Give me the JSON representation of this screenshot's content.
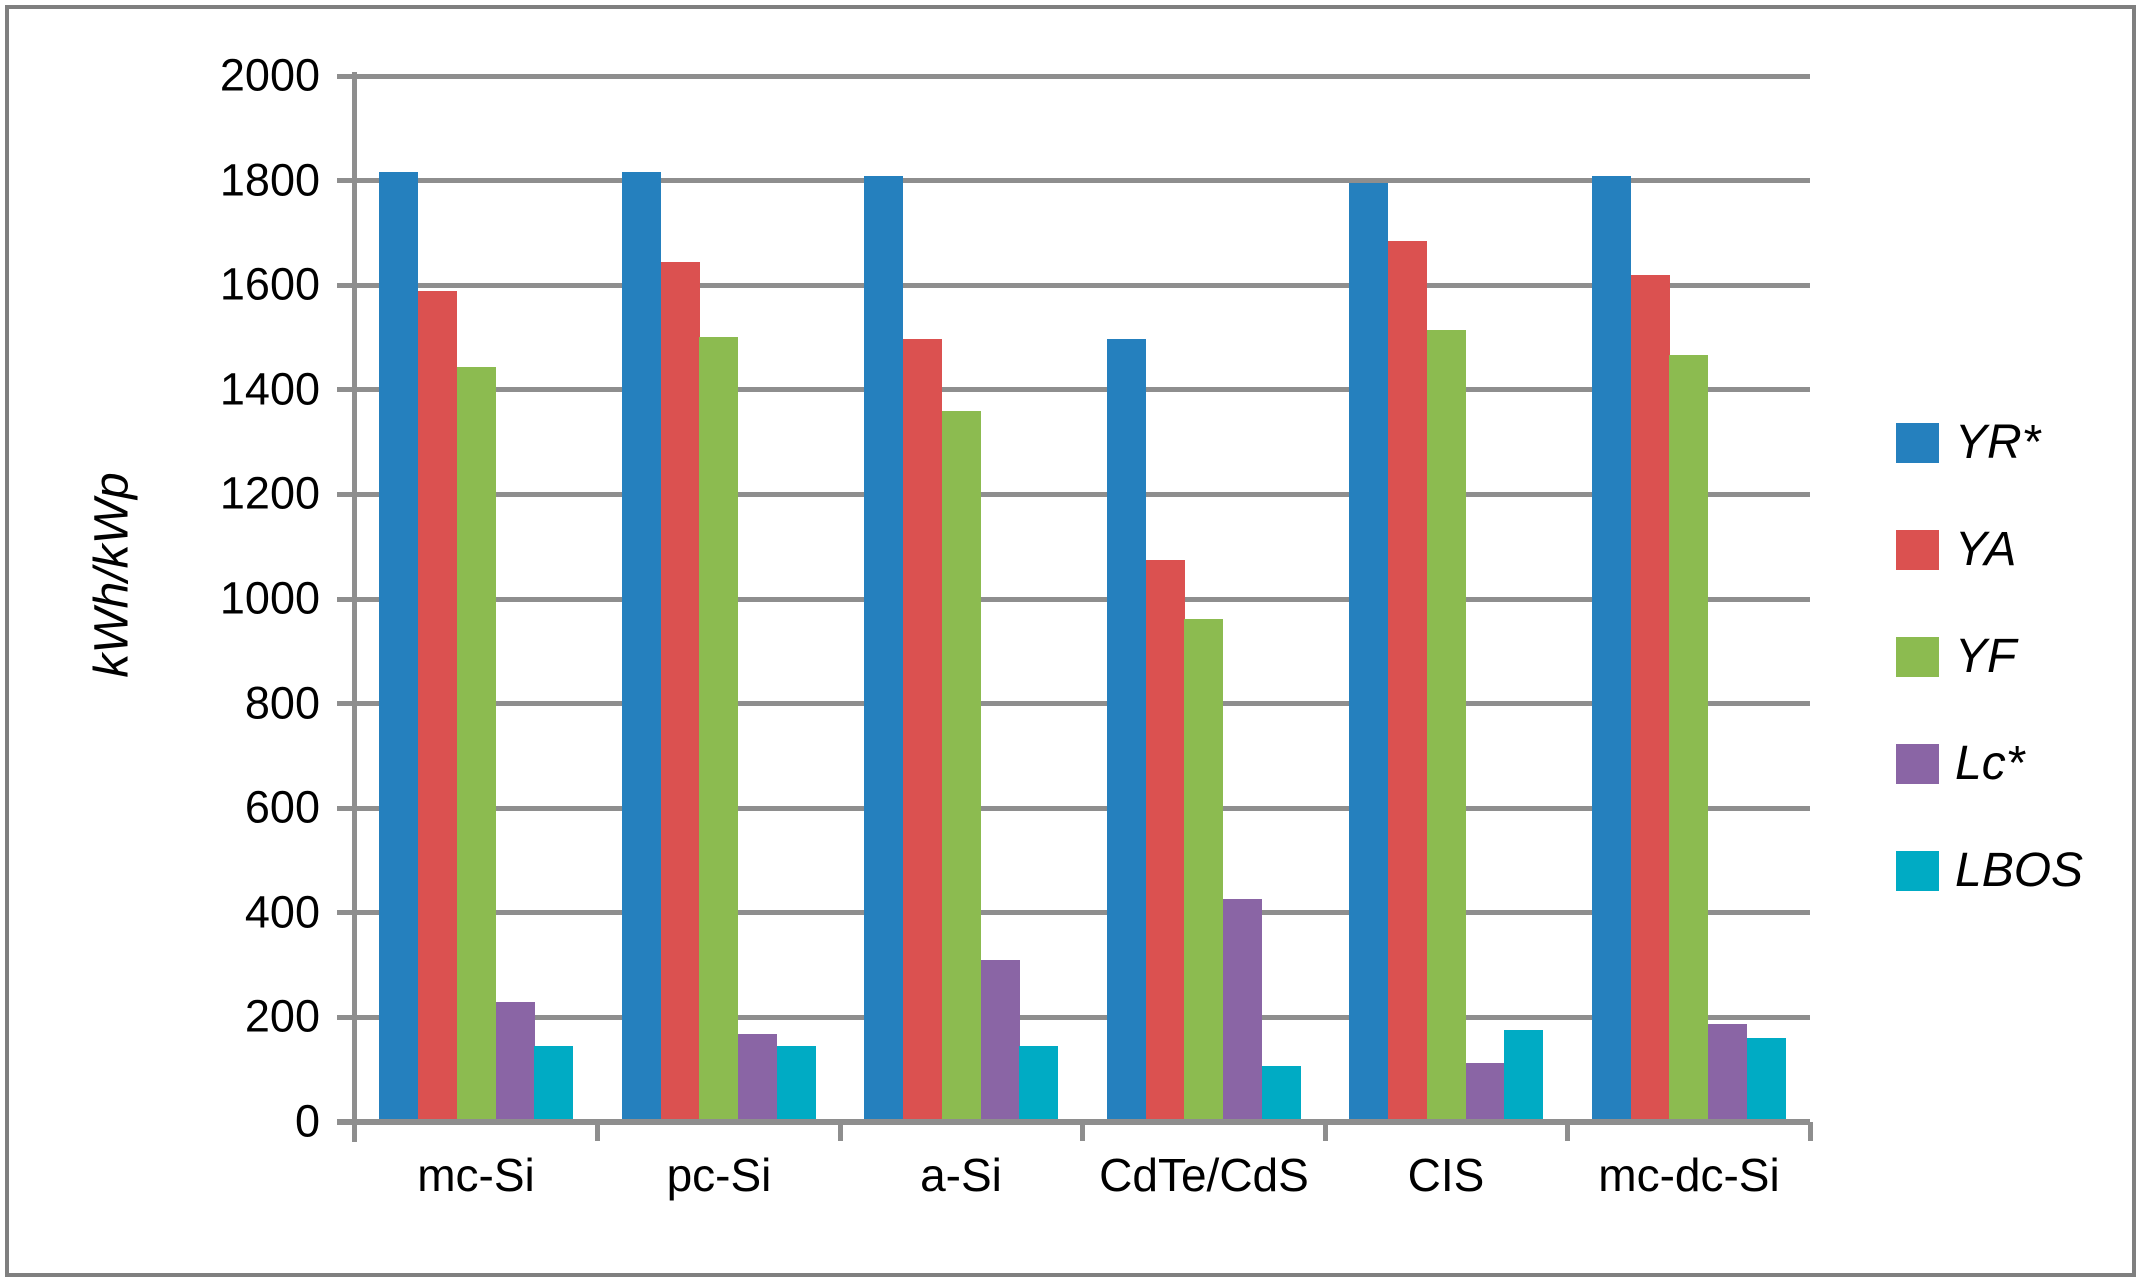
{
  "chart_data": {
    "type": "bar",
    "title": "",
    "xlabel": "",
    "ylabel": "kWh/kWp",
    "ylim": [
      0,
      2000
    ],
    "yticks": [
      0,
      200,
      400,
      600,
      800,
      1000,
      1200,
      1400,
      1600,
      1800,
      2000
    ],
    "grid": true,
    "legend_position": "right",
    "categories": [
      "mc-Si",
      "pc-Si",
      "a-Si",
      "CdTe/CdS",
      "CIS",
      "mc-dc-Si"
    ],
    "series": [
      {
        "name": "YR*",
        "color": "#2580be",
        "values": [
          1816,
          1817,
          1809,
          1498,
          1795,
          1809
        ]
      },
      {
        "name": "YA",
        "color": "#db5150",
        "values": [
          1588,
          1645,
          1498,
          1075,
          1685,
          1620
        ]
      },
      {
        "name": "YF",
        "color": "#8cbb50",
        "values": [
          1443,
          1500,
          1360,
          962,
          1514,
          1466
        ]
      },
      {
        "name": "Lc*",
        "color": "#8a65a5",
        "values": [
          229,
          169,
          310,
          427,
          112,
          187
        ]
      },
      {
        "name": "LBOS",
        "color": "#00abc4",
        "values": [
          145,
          145,
          146,
          108,
          176,
          161
        ]
      }
    ],
    "colors": {
      "gridline": "#8e8e8e",
      "axis": "#8e8e8e",
      "frame_border": "#7f7f7f",
      "text": "#000000"
    }
  }
}
